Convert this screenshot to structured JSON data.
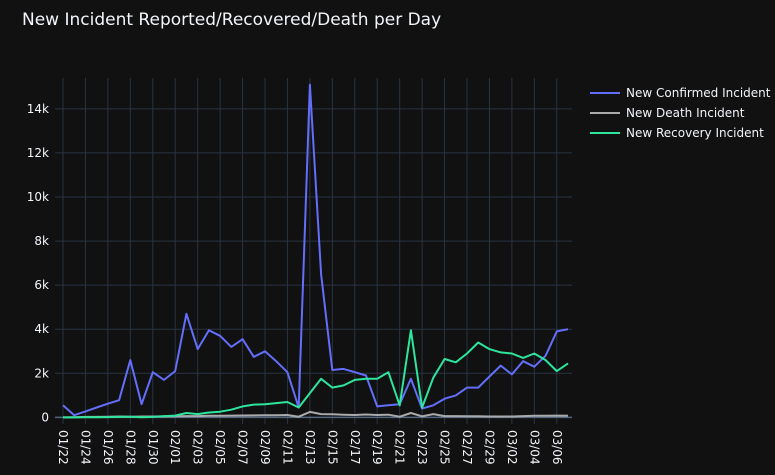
{
  "title": "New Incident Reported/Recovered/Death per Day",
  "colors": {
    "background": "#111111",
    "grid": "#283442",
    "text": "#f2f5fa",
    "confirmed": "#636efa",
    "death": "#aaaaaa",
    "recovery": "#2ee59d"
  },
  "chart_data": {
    "type": "line",
    "title": "New Incident Reported/Recovered/Death per Day",
    "xlabel": "",
    "ylabel": "",
    "x": [
      "01/22",
      "01/23",
      "01/24",
      "01/25",
      "01/26",
      "01/27",
      "01/28",
      "01/29",
      "01/30",
      "01/31",
      "02/01",
      "02/02",
      "02/03",
      "02/04",
      "02/05",
      "02/06",
      "02/07",
      "02/08",
      "02/09",
      "02/10",
      "02/11",
      "02/12",
      "02/13",
      "02/14",
      "02/15",
      "02/16",
      "02/17",
      "02/18",
      "02/19",
      "02/20",
      "02/21",
      "02/22",
      "02/23",
      "02/24",
      "02/25",
      "02/26",
      "02/27",
      "02/28",
      "02/29",
      "03/01",
      "03/02",
      "03/03",
      "03/04",
      "03/05",
      "03/06",
      "03/07"
    ],
    "x_tick_labels": [
      "01/22",
      "01/24",
      "01/26",
      "01/28",
      "01/30",
      "02/01",
      "02/03",
      "02/05",
      "02/07",
      "02/09",
      "02/11",
      "02/13",
      "02/15",
      "02/17",
      "02/19",
      "02/21",
      "02/23",
      "02/25",
      "02/27",
      "02/29",
      "03/02",
      "03/04",
      "03/06"
    ],
    "y_ticks": [
      0,
      2000,
      4000,
      6000,
      8000,
      10000,
      12000,
      14000
    ],
    "y_tick_labels": [
      "0",
      "2k",
      "4k",
      "6k",
      "8k",
      "10k",
      "12k",
      "14k"
    ],
    "ylim": [
      -300,
      15400
    ],
    "grid": true,
    "legend_position": "top-right",
    "series": [
      {
        "name": "New Confirmed Incident",
        "color": "#636efa",
        "values": [
          550,
          100,
          270,
          450,
          620,
          780,
          2600,
          600,
          2050,
          1700,
          2100,
          4700,
          3100,
          3950,
          3700,
          3200,
          3550,
          2750,
          3000,
          2550,
          2050,
          450,
          15100,
          6500,
          2150,
          2200,
          2050,
          1900,
          500,
          550,
          600,
          1750,
          400,
          550,
          850,
          1000,
          1350,
          1350,
          1850,
          2350,
          1950,
          2550,
          2300,
          2800,
          3900,
          4000
        ]
      },
      {
        "name": "New Death Incident",
        "color": "#aaaaaa",
        "values": [
          0,
          10,
          20,
          20,
          30,
          40,
          30,
          40,
          40,
          45,
          50,
          60,
          60,
          70,
          70,
          80,
          85,
          90,
          95,
          100,
          110,
          30,
          250,
          150,
          140,
          120,
          110,
          130,
          110,
          120,
          30,
          200,
          50,
          150,
          60,
          60,
          50,
          50,
          40,
          40,
          40,
          60,
          70,
          70,
          80,
          70
        ]
      },
      {
        "name": "New Recovery Incident",
        "color": "#2ee59d",
        "values": [
          0,
          0,
          5,
          10,
          15,
          20,
          30,
          10,
          20,
          60,
          80,
          200,
          150,
          220,
          260,
          350,
          500,
          580,
          600,
          650,
          700,
          450,
          1100,
          1750,
          1350,
          1450,
          1700,
          1750,
          1750,
          2050,
          550,
          3950,
          450,
          1800,
          2650,
          2500,
          2900,
          3400,
          3100,
          2950,
          2900,
          2700,
          2900,
          2600,
          2100,
          2450
        ]
      }
    ]
  }
}
